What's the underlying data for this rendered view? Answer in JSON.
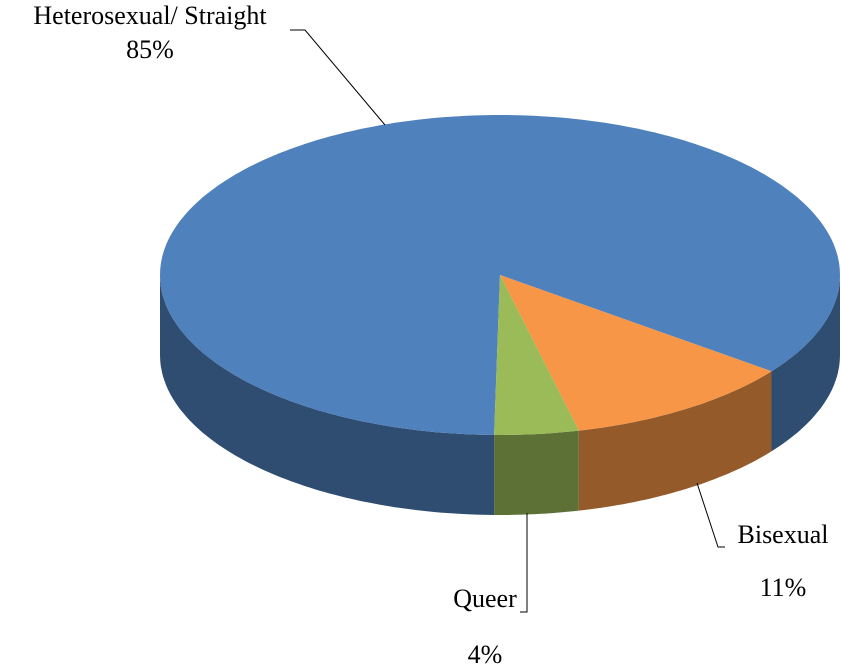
{
  "chart_data": {
    "type": "pie3d",
    "categories": [
      "Heterosexual/ Straight",
      "Bisexual",
      "Queer"
    ],
    "values": [
      85,
      11,
      4
    ],
    "value_labels": [
      "85%",
      "11%",
      "4%"
    ],
    "colors": [
      "#4f81bd",
      "#f79646",
      "#9bbb59"
    ]
  }
}
